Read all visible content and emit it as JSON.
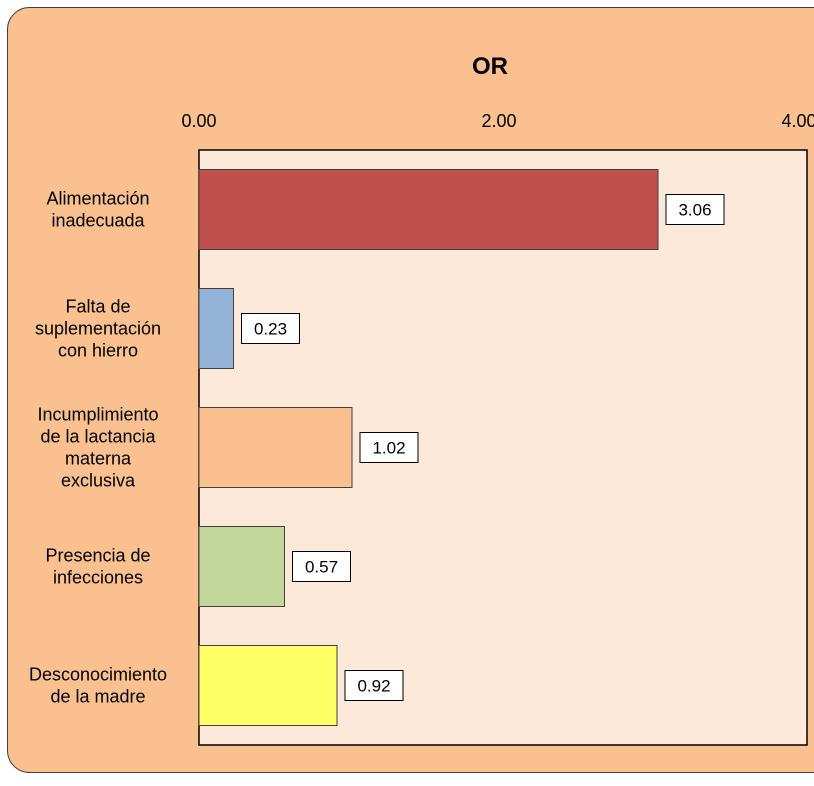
{
  "chart_data": {
    "type": "bar",
    "orientation": "horizontal",
    "title": "OR",
    "xlabel": "",
    "ylabel": "",
    "xlim": [
      0,
      4
    ],
    "x_ticks": [
      0,
      2,
      4
    ],
    "x_tick_labels": [
      "0.00",
      "2.00",
      "4.00"
    ],
    "x_axis_position": "top",
    "categories": [
      "Alimentación inadecuada",
      "Falta de suplementación con hierro",
      "Incumplimiento de la lactancia materna exclusiva",
      "Presencia de infecciones",
      "Desconocimiento de la madre"
    ],
    "category_label_lines": [
      [
        "Alimentación",
        "inadecuada"
      ],
      [
        "Falta de",
        "suplementación",
        "con hierro"
      ],
      [
        "Incumplimiento",
        "de la lactancia",
        "materna",
        "exclusiva"
      ],
      [
        "Presencia de",
        "infecciones"
      ],
      [
        "Desconocimiento",
        "de la madre"
      ]
    ],
    "values": [
      3.06,
      0.23,
      1.02,
      0.57,
      0.92
    ],
    "data_labels": [
      "3.06",
      "0.23",
      "1.02",
      "0.57",
      "0.92"
    ],
    "bar_colors": [
      "#C0504D",
      "#95B3D7",
      "#FAC090",
      "#C3D69B",
      "#FFFF66"
    ],
    "grid": false,
    "legend": "none",
    "chart_background": "#FAC090",
    "plot_background": "#FDE9D9"
  }
}
